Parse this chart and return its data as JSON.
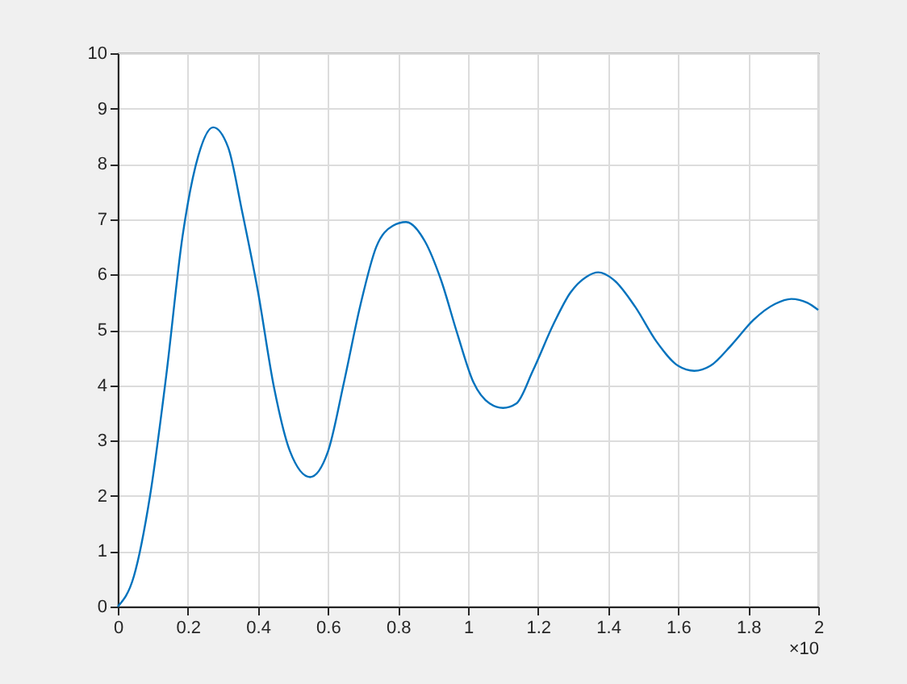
{
  "chart_data": {
    "type": "line",
    "xlabel": "×10",
    "x": [
      0,
      0.046,
      0.092,
      0.138,
      0.185,
      0.23,
      0.272,
      0.315,
      0.354,
      0.4,
      0.446,
      0.492,
      0.549,
      0.6,
      0.646,
      0.692,
      0.738,
      0.785,
      0.823,
      0.877,
      0.923,
      0.969,
      1.015,
      1.062,
      1.1,
      1.138,
      1.185,
      1.246,
      1.292,
      1.338,
      1.372,
      1.415,
      1.477,
      1.538,
      1.6,
      1.646,
      1.692,
      1.754,
      1.815,
      1.877,
      1.923,
      1.969,
      2.0
    ],
    "series": [
      {
        "color": "#0072bd",
        "values": [
          0,
          0.55,
          2.0,
          4.16,
          6.7,
          8.15,
          8.66,
          8.3,
          7.17,
          5.7,
          3.96,
          2.8,
          2.34,
          2.8,
          4.06,
          5.43,
          6.5,
          6.88,
          6.95,
          6.6,
          5.9,
          4.94,
          4.06,
          3.67,
          3.59,
          3.67,
          4.26,
          5.13,
          5.67,
          5.96,
          6.04,
          5.91,
          5.42,
          4.79,
          4.35,
          4.26,
          4.35,
          4.74,
          5.18,
          5.47,
          5.56,
          5.49,
          5.36
        ]
      }
    ],
    "xlim": [
      0,
      2
    ],
    "xticks": [
      0,
      0.2,
      0.4,
      0.6,
      0.8,
      1,
      1.2,
      1.4,
      1.6,
      1.8,
      2
    ],
    "ylim": [
      0,
      10
    ],
    "yticks": [
      0,
      1,
      2,
      3,
      4,
      5,
      6,
      7,
      8,
      9,
      10
    ],
    "grid": true,
    "marker": "none",
    "line_style": "solid"
  }
}
